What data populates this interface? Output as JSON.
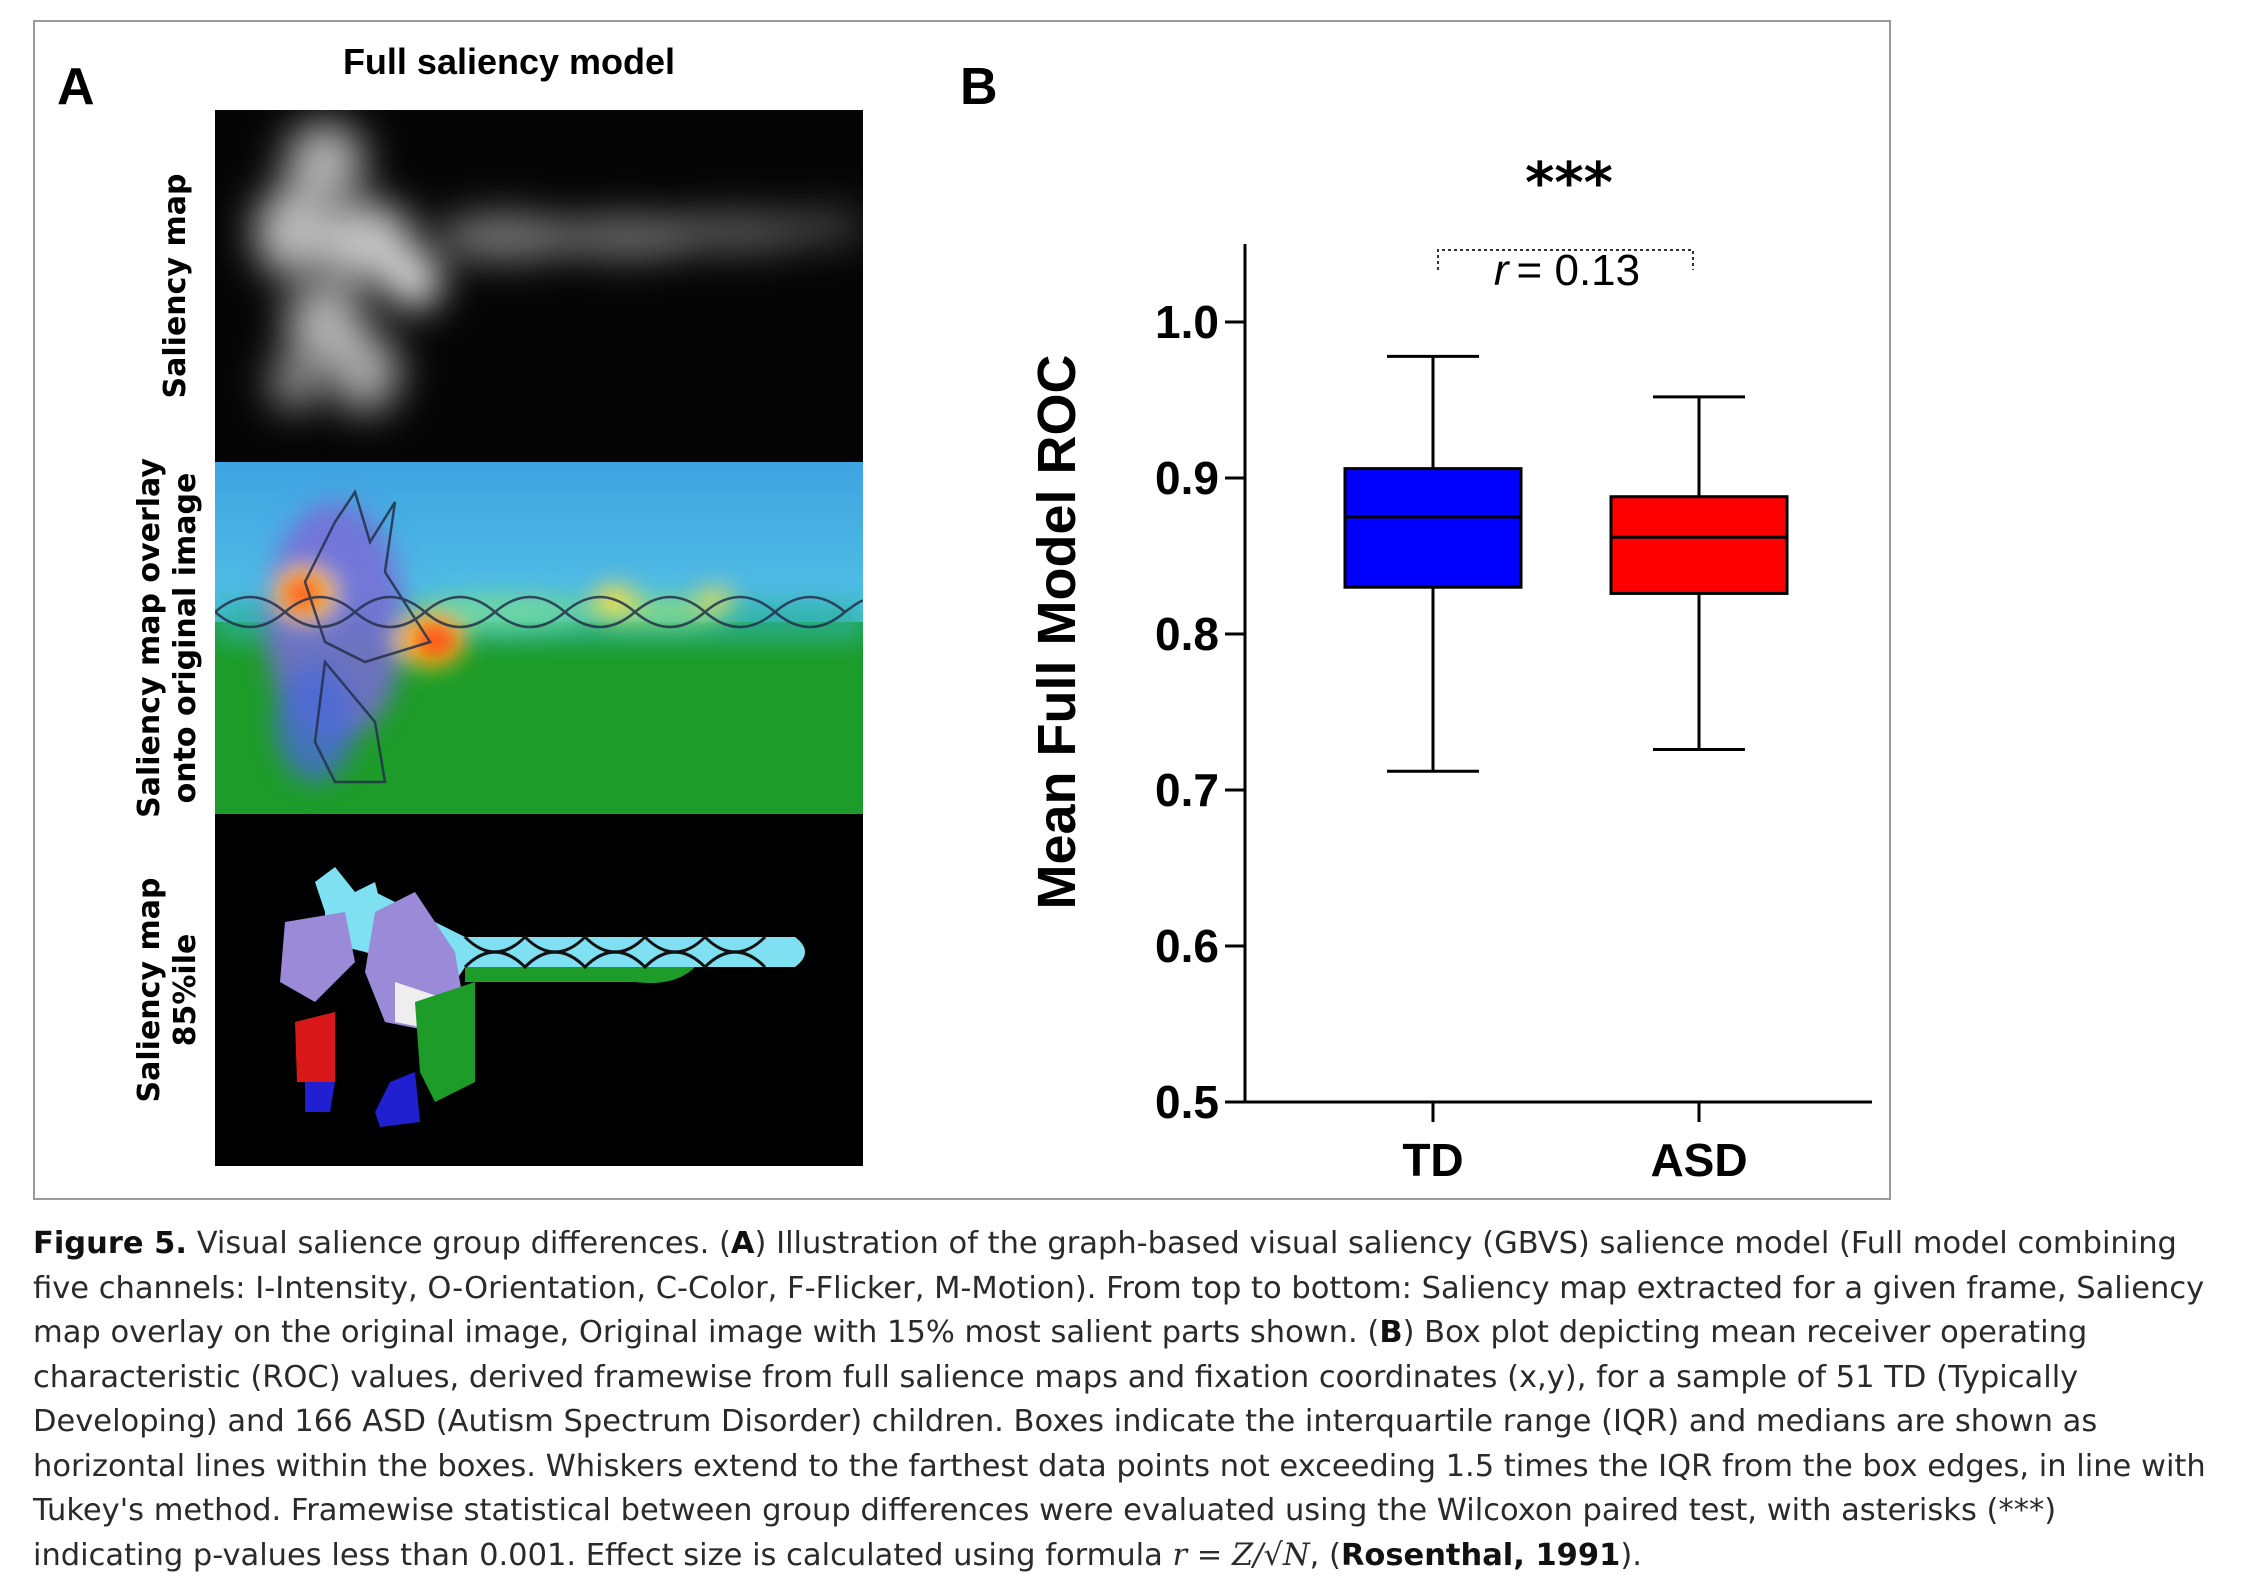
{
  "panel_a": {
    "letter": "A",
    "title": "Full saliency model",
    "rows": [
      {
        "label_lines": [
          "Saliency map"
        ]
      },
      {
        "label_lines": [
          "Saliency map overlay",
          "onto original image"
        ]
      },
      {
        "label_lines": [
          "Saliency map",
          "85%ile"
        ]
      }
    ]
  },
  "panel_b": {
    "letter": "B",
    "significance": "***",
    "effect_symbol": "r",
    "effect_value": "= 0.13"
  },
  "chart_data": {
    "type": "box",
    "ylabel": "Mean Full Model ROC",
    "ylim": [
      0.5,
      1.05
    ],
    "y_ticks": [
      "1.0",
      "0.9",
      "0.8",
      "0.7",
      "0.6",
      "0.5"
    ],
    "categories": [
      "TD",
      "ASD"
    ],
    "boxes": [
      {
        "name": "TD",
        "min": 0.712,
        "q1": 0.83,
        "median": 0.875,
        "q3": 0.906,
        "max": 0.978,
        "color": "#0000ff"
      },
      {
        "name": "ASD",
        "min": 0.726,
        "q1": 0.826,
        "median": 0.862,
        "q3": 0.888,
        "max": 0.952,
        "color": "#ff0000"
      }
    ],
    "grid": false,
    "annotation": {
      "text": "***",
      "between": [
        "TD",
        "ASD"
      ],
      "effect": "r = 0.13"
    }
  },
  "caption": {
    "label": "Figure 5.",
    "p1": " Visual salience group differences. (",
    "a": "A",
    "p2": ") Illustration of the graph-based visual saliency (GBVS) salience model (Full model combining five channels: I-Intensity, O-Orientation, C-Color, F-Flicker, M-Motion). From top to bottom: Saliency map extracted for a given frame, Saliency map overlay on the original image, Original image with 15% most salient parts shown. (",
    "b": "B",
    "p3": ") Box plot depicting mean receiver operating characteristic (ROC) values, derived framewise from full salience maps and fixation coordinates (x,y), for a sample of 51 TD (Typically Developing) and 166 ASD (Autism Spectrum Disorder) children. Boxes indicate the interquartile range (IQR) and medians are shown as horizontal lines within the boxes. Whiskers extend to the farthest data points not exceeding 1.5 times the IQR from the box edges, in line with Tukey's method. Framewise statistical between group differences were evaluated using the Wilcoxon paired test, with asterisks (***) indicating p-values less than 0.001. Effect size is calculated using formula ",
    "formula": "r = Z/√N",
    "p4": ", (",
    "ref": "Rosenthal, 1991",
    "p5": ")."
  }
}
